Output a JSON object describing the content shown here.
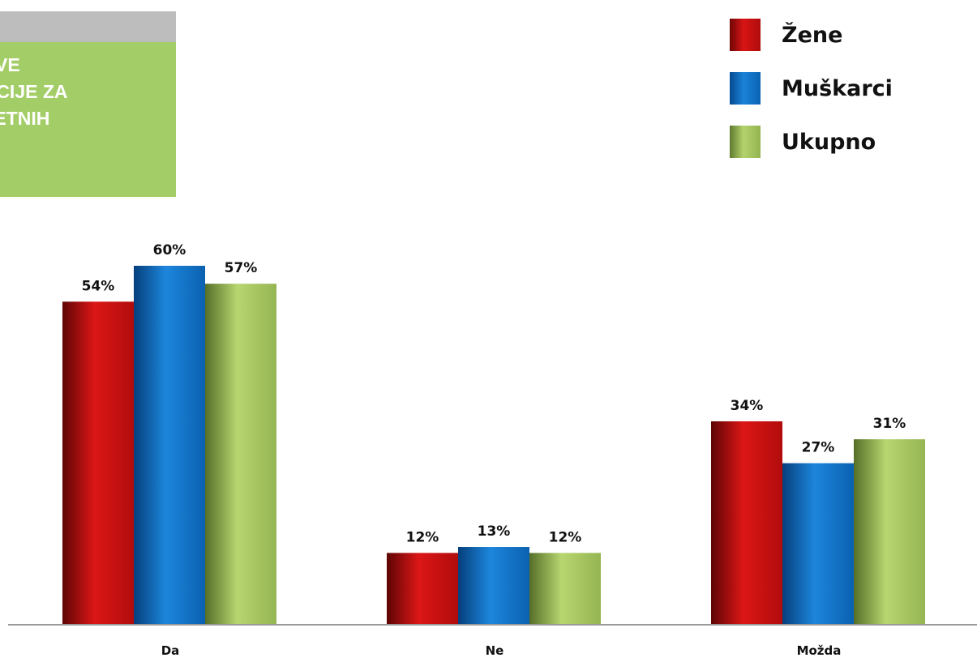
{
  "title_box": {
    "text": "IMAM SVE\nFORMACIJE ZA\nKVALITETNIH\nEDNJI..."
  },
  "colors": {
    "zene": "#c90e0e",
    "muskarci": "#0c6cc2",
    "ukupno": "#a3c35d",
    "title_bg": "#a3cd66",
    "title_header": "#bdbdbd"
  },
  "chart_data": {
    "type": "bar",
    "title": "",
    "xlabel": "",
    "ylabel": "",
    "ylim": [
      0,
      60
    ],
    "grid": false,
    "legend_position": "top-right",
    "categories": [
      "Da",
      "Ne",
      "Možda"
    ],
    "series": [
      {
        "name": "Žene",
        "values": [
          54,
          12,
          34
        ],
        "labels": [
          "54%",
          "12%",
          "34%"
        ]
      },
      {
        "name": "Muškarci",
        "values": [
          60,
          13,
          27
        ],
        "labels": [
          "60%",
          "13%",
          "27%"
        ]
      },
      {
        "name": "Ukupno",
        "values": [
          57,
          12,
          31
        ],
        "labels": [
          "57%",
          "12%",
          "31%"
        ]
      }
    ]
  }
}
